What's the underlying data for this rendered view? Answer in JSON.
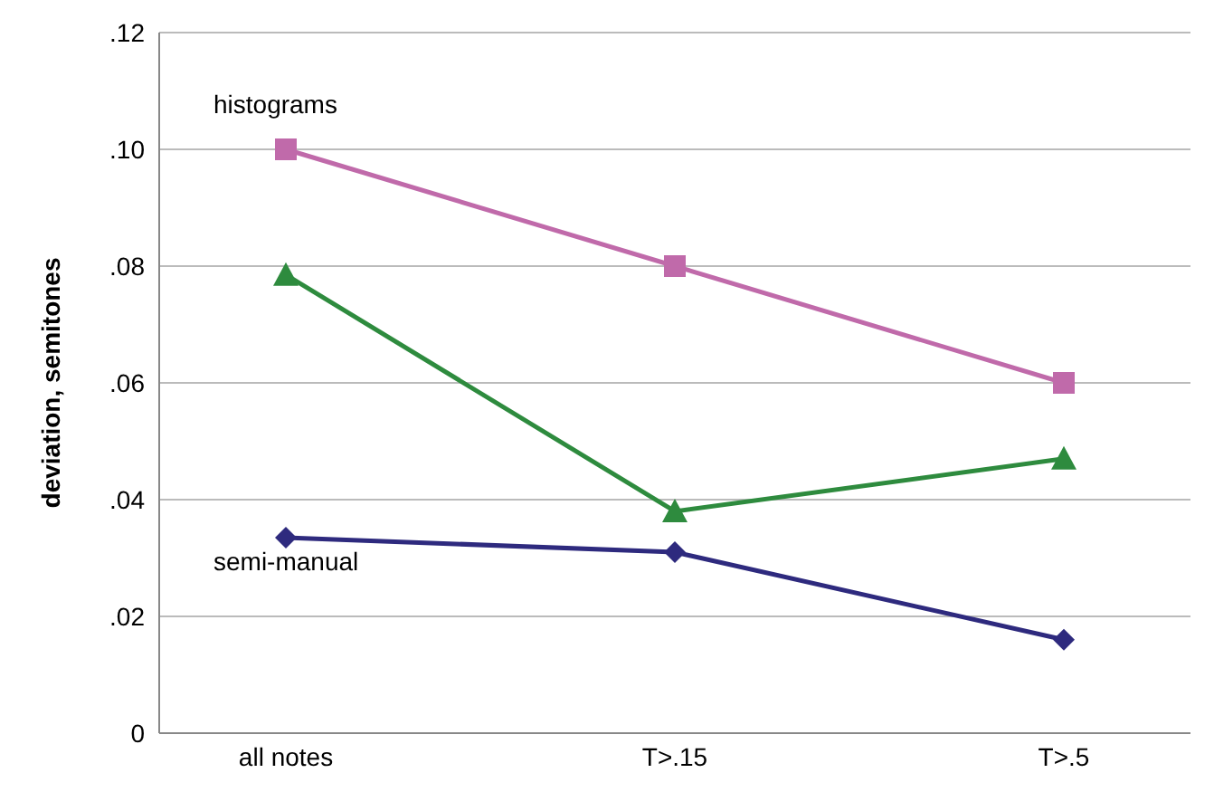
{
  "chart_data": {
    "type": "line",
    "ylabel": "deviation, semitones",
    "categories": [
      "all notes",
      "T>.15",
      "T>.5"
    ],
    "series": [
      {
        "name": "histograms",
        "color": "#c06aaa",
        "marker": "square",
        "values": [
          0.1,
          0.08,
          0.06
        ]
      },
      {
        "color": "#2e8b3e",
        "marker": "triangle",
        "values": [
          0.0785,
          0.038,
          0.047
        ]
      },
      {
        "name": "semi-manual",
        "color": "#2e2a7e",
        "marker": "diamond",
        "values": [
          0.0335,
          0.031,
          0.016
        ]
      }
    ],
    "ylim": [
      0,
      0.12
    ],
    "yticks": [
      {
        "value": 0,
        "label": "0"
      },
      {
        "value": 0.02,
        "label": ".02"
      },
      {
        "value": 0.04,
        "label": ".04"
      },
      {
        "value": 0.06,
        "label": ".06"
      },
      {
        "value": 0.08,
        "label": ".08"
      },
      {
        "value": 0.1,
        "label": ".10"
      },
      {
        "value": 0.12,
        "label": ".12"
      }
    ],
    "grid": "y",
    "legend": false,
    "line_style": "solid"
  }
}
